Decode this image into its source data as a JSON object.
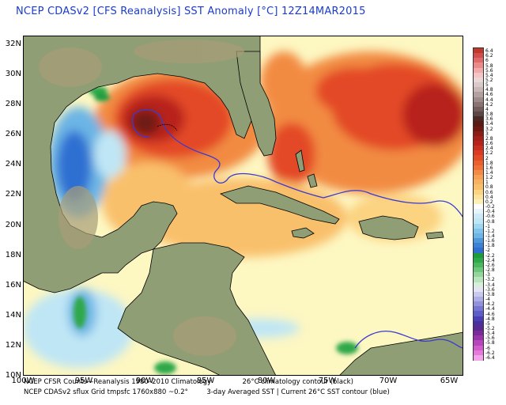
{
  "title": "NCEP CDASv2 [CFS Reanalysis] SST Anomaly [°C] 12Z14MAR2015",
  "map": {
    "lat_labels": [
      "32N",
      "30N",
      "28N",
      "26N",
      "24N",
      "22N",
      "20N",
      "18N",
      "16N",
      "14N",
      "12N",
      "10N"
    ],
    "lon_labels": [
      "100W",
      "95W",
      "90W",
      "85W",
      "80W",
      "75W",
      "70W",
      "65W"
    ],
    "colors": {
      "land": "#8f9e74",
      "land_high": "#a89d78",
      "ocean_neutral": "#fdf7c2",
      "warm1": "#f9c06c",
      "warm2": "#f28b43",
      "warm3": "#e34a26",
      "warm4": "#b8221b",
      "hot": "#6e1a12",
      "cool1": "#bfe6f5",
      "cool2": "#6cb5e5",
      "cool3": "#2f6fd2",
      "green": "#2da84a",
      "contour": "#3b3ad0",
      "coast": "#000000"
    }
  },
  "colorbar": {
    "labels": [
      "6.4",
      "6.2",
      "6",
      "5.8",
      "5.6",
      "5.4",
      "5.2",
      "5",
      "4.8",
      "4.6",
      "4.4",
      "4.2",
      "4",
      "3.8",
      "3.6",
      "3.4",
      "3.2",
      "3",
      "2.8",
      "2.6",
      "2.4",
      "2.2",
      "2",
      "1.8",
      "1.6",
      "1.4",
      "1.2",
      "1",
      "0.8",
      "0.6",
      "0.4",
      "0.2",
      "-0.2",
      "-0.4",
      "-0.6",
      "-0.8",
      "-1",
      "-1.2",
      "-1.4",
      "-1.6",
      "-1.8",
      "-2",
      "-2.2",
      "-2.4",
      "-2.6",
      "-2.8",
      "-3",
      "-3.2",
      "-3.4",
      "-3.6",
      "-3.8",
      "-4",
      "-4.2",
      "-4.4",
      "-4.6",
      "-4.8",
      "-5",
      "-5.2",
      "-5.4",
      "-5.6",
      "-5.8",
      "-6",
      "-6.2",
      "-6.4"
    ],
    "colors": [
      "#c0392b",
      "#d34f4f",
      "#e06a6a",
      "#ea8a8a",
      "#f2a9a9",
      "#f5c4c4",
      "#e9d6d6",
      "#d9c9c9",
      "#c9b6b6",
      "#b3a0a0",
      "#9f8a8a",
      "#8a7373",
      "#745c5c",
      "#5d4646",
      "#4a2a25",
      "#5a1a12",
      "#6e1a12",
      "#8a1d15",
      "#a3211a",
      "#b8221b",
      "#c92f1f",
      "#da3b22",
      "#e34a26",
      "#eb5e2e",
      "#f07038",
      "#f28b43",
      "#f5a052",
      "#f7b261",
      "#f9c06c",
      "#fbd381",
      "#fce39b",
      "#fdf0b6",
      "#ffffff",
      "#e6f4fb",
      "#cfeaf7",
      "#bfe6f5",
      "#9fd6f0",
      "#7fc4ea",
      "#6cb5e5",
      "#4e98dc",
      "#3a82d6",
      "#2f6fd2",
      "#1f9c3a",
      "#2da84a",
      "#4ab85f",
      "#6cc77a",
      "#93d69b",
      "#b7e4bc",
      "#d7efd9",
      "#e3e3f5",
      "#c9c9ee",
      "#aeaee6",
      "#9191dc",
      "#7676d2",
      "#5e5ec8",
      "#4a3fb7",
      "#4b2f9c",
      "#5a2a8e",
      "#7a2a9a",
      "#9a34aa",
      "#b846bb",
      "#d35ccc",
      "#e67adc",
      "#f3a3ea"
    ]
  },
  "footer": {
    "line1_left": "NCEP CFSR Counts—Reanalysis 1980–2010 Climatology",
    "line1_right": "26°C climatology contour (black)",
    "line2_left": "NCEP CDASv2 sflux Grid tmpsfc 1760x880 ~0.2°",
    "line2_right": "3-day Averaged SST | Current 26°C SST contour (blue)"
  }
}
